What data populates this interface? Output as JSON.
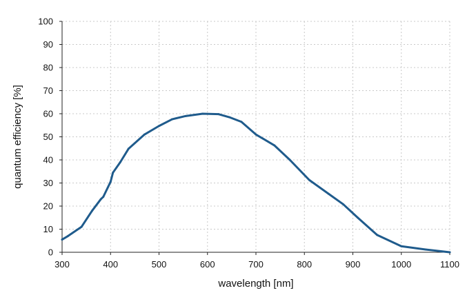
{
  "chart_data": {
    "type": "line",
    "title": "",
    "xlabel": "wavelength [nm]",
    "ylabel": "quantum efficiency [%]",
    "xlim": [
      300,
      1100
    ],
    "ylim": [
      0,
      100
    ],
    "xticks": [
      "300",
      "400",
      "500",
      "600",
      "700",
      "800",
      "900",
      "1000",
      "1100"
    ],
    "yticks": [
      "0",
      "10",
      "20",
      "30",
      "40",
      "50",
      "60",
      "70",
      "80",
      "90",
      "100"
    ],
    "grid": true,
    "line_color": "#1f5b8c",
    "series": [
      {
        "x": [
          300,
          312,
          340,
          362,
          380,
          385,
          400,
          405,
          420,
          437,
          470,
          500,
          527,
          555,
          590,
          623,
          645,
          670,
          700,
          738,
          770,
          810,
          850,
          880,
          910,
          950,
          1000,
          1050,
          1100
        ],
        "y": [
          5.5,
          7,
          11,
          18,
          23,
          24,
          30.5,
          34.5,
          39,
          44.8,
          51,
          54.7,
          57.6,
          59,
          60,
          59.8,
          58.5,
          56.5,
          51,
          46.3,
          40,
          31.3,
          25.3,
          20.8,
          15,
          7.5,
          2.6,
          1.2,
          0
        ]
      }
    ]
  }
}
